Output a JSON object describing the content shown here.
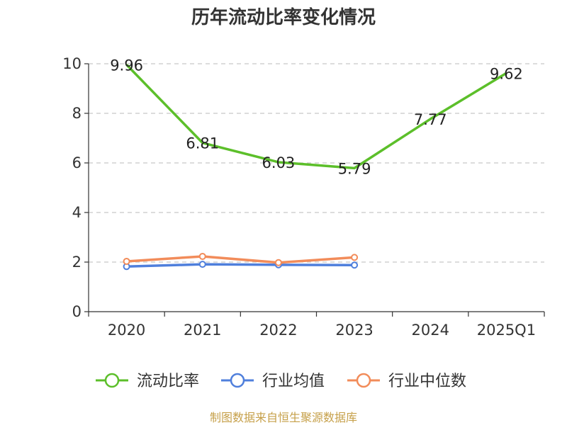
{
  "chart_data": {
    "type": "line",
    "title": "历年流动比率变化情况",
    "categories": [
      "2020",
      "2021",
      "2022",
      "2023",
      "2024",
      "2025Q1"
    ],
    "ylim": [
      0,
      10
    ],
    "yticks": [
      0,
      2,
      4,
      6,
      8,
      10
    ],
    "grid": "horizontal-dashed",
    "legend_position": "bottom",
    "series": [
      {
        "name": "流动比率",
        "color": "#5cbf2a",
        "values": [
          9.96,
          6.81,
          6.03,
          5.79,
          7.77,
          9.62
        ],
        "labels": [
          "9.96",
          "6.81",
          "6.03",
          "5.79",
          "7.77",
          "9.62"
        ]
      },
      {
        "name": "行业均值",
        "color": "#4f7fdc",
        "values": [
          1.82,
          1.91,
          1.89,
          1.88,
          null,
          null
        ]
      },
      {
        "name": "行业中位数",
        "color": "#f28c5a",
        "values": [
          2.03,
          2.23,
          1.98,
          2.19,
          null,
          null
        ]
      }
    ]
  },
  "source": "制图数据来自恒生聚源数据库"
}
